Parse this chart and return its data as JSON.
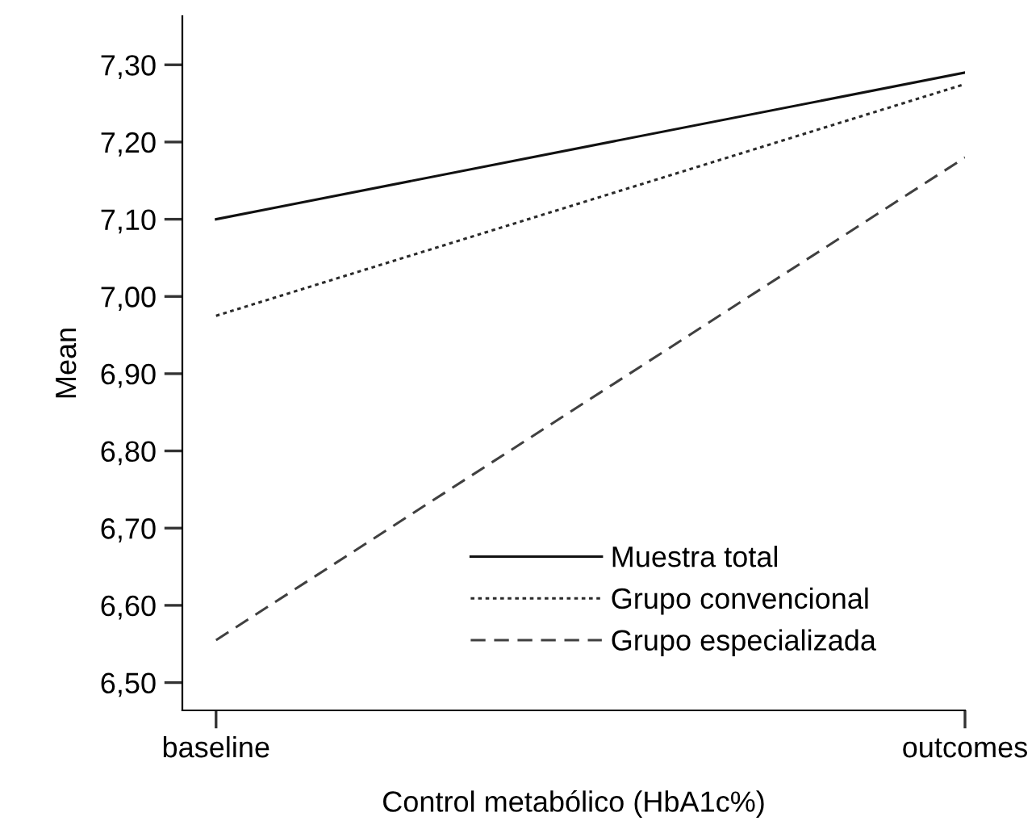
{
  "chart_data": {
    "type": "line",
    "xlabel": "Control metabólico (HbA1c%)",
    "ylabel": "Mean",
    "categories": [
      "baseline",
      "outcomes"
    ],
    "series": [
      {
        "name": "Muestra total",
        "color": "#111111",
        "values": [
          7.1,
          7.29
        ],
        "line_style": "solid"
      },
      {
        "name": "Grupo convencional",
        "color": "#2a2a2a",
        "values": [
          6.975,
          7.275
        ],
        "line_style": "dotted"
      },
      {
        "name": "Grupo especializada",
        "color": "#404040",
        "values": [
          6.555,
          7.18
        ],
        "line_style": "dashed"
      }
    ],
    "ylim": [
      6.464,
      7.363
    ],
    "yticks": [
      {
        "value": 6.5,
        "label": "6,50"
      },
      {
        "value": 6.6,
        "label": "6,60"
      },
      {
        "value": 6.7,
        "label": "6,70"
      },
      {
        "value": 6.8,
        "label": "6,80"
      },
      {
        "value": 6.9,
        "label": "6,90"
      },
      {
        "value": 7.0,
        "label": "7,00"
      },
      {
        "value": 7.1,
        "label": "7,10"
      },
      {
        "value": 7.2,
        "label": "7,20"
      },
      {
        "value": 7.3,
        "label": "7,30"
      }
    ],
    "grid": false,
    "legend": "bottom right",
    "marker": "none"
  }
}
